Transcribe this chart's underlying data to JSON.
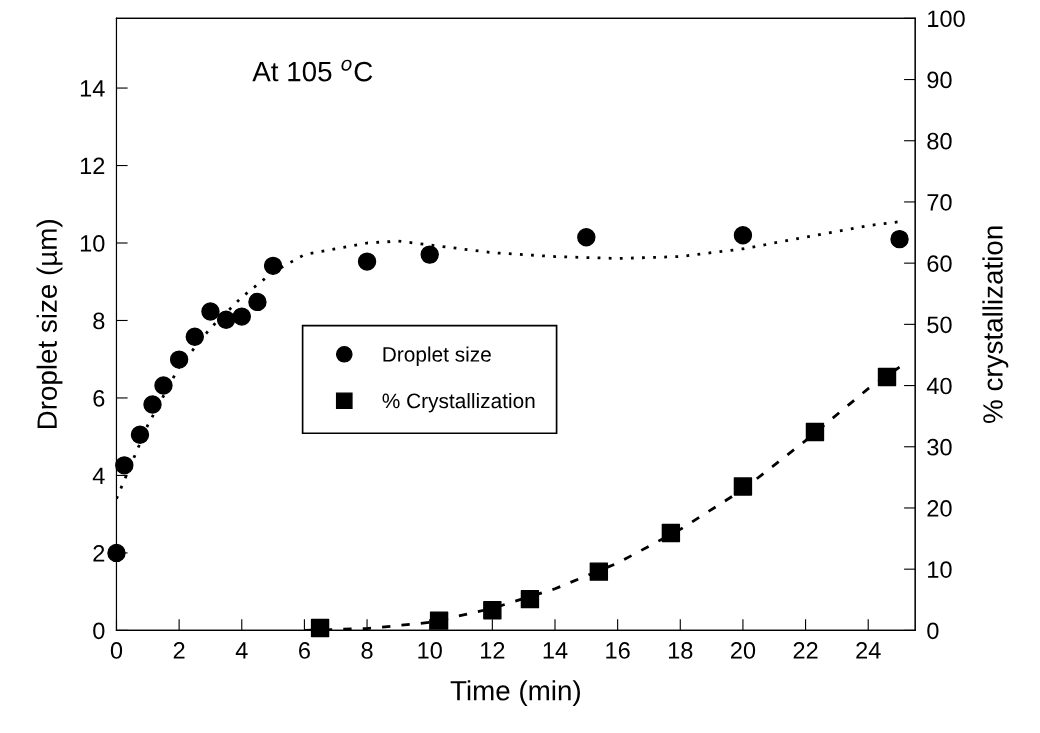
{
  "chart_data": {
    "type": "scatter",
    "xlabel": "Time (min)",
    "ylabel": "Droplet size (µm)",
    "y2label": "% crystallization",
    "annotations": [
      "At 105 $^{o}$C"
    ],
    "xlim": [
      0,
      25.5
    ],
    "xticks": [
      0,
      2,
      4,
      6,
      8,
      10,
      12,
      14,
      16,
      18,
      20,
      22,
      24
    ],
    "ylim": [
      0,
      15.8
    ],
    "yticks": [
      0,
      2,
      4,
      6,
      8,
      10,
      12,
      14
    ],
    "y2lim": [
      0,
      100
    ],
    "y2ticks": [
      0,
      10,
      20,
      30,
      40,
      50,
      60,
      70,
      80,
      90,
      100
    ],
    "grid": false,
    "legend": "center left",
    "series": [
      {
        "name": "Droplet size",
        "marker": "circle",
        "color": "#000000",
        "x": [
          0,
          0.25,
          0.75,
          1.15,
          1.5,
          2,
          2.5,
          3,
          3.5,
          4,
          4.5,
          5,
          8,
          10,
          15,
          20,
          25
        ],
        "values": [
          2.0,
          4.26,
          5.05,
          5.83,
          6.32,
          6.99,
          7.58,
          8.23,
          8.02,
          8.1,
          8.48,
          9.41,
          9.52,
          9.7,
          10.15,
          10.2,
          10.1
        ]
      },
      {
        "name": "% Crystallization",
        "marker": "square",
        "axis": "y2",
        "color": "#000000",
        "x": [
          6.5,
          10.3,
          12,
          13.2,
          15.4,
          17.7,
          20,
          22.3,
          24.6
        ],
        "values": [
          0.4,
          1.6,
          3.3,
          5.1,
          9.6,
          15.9,
          23.5,
          32.4,
          41.4
        ]
      },
      {
        "type": "line",
        "line_style": "dotted",
        "color": "#000000",
        "x": [
          0,
          1,
          2,
          3,
          4,
          5,
          6,
          8,
          9,
          10,
          12,
          14,
          16,
          18,
          20,
          22,
          24,
          25
        ],
        "values": [
          3.4,
          5.3,
          6.8,
          7.8,
          8.6,
          9.25,
          9.7,
          10.0,
          10.05,
          9.95,
          9.75,
          9.65,
          9.6,
          9.65,
          9.85,
          10.15,
          10.45,
          10.55
        ]
      },
      {
        "type": "line",
        "line_style": "dashed",
        "axis": "y2",
        "color": "#000000",
        "x": [
          6,
          8,
          10,
          12,
          14,
          16,
          18,
          20,
          22,
          24,
          25
        ],
        "values": [
          0,
          0.3,
          1.3,
          3.6,
          6.8,
          11,
          16.5,
          23,
          31,
          39.5,
          43
        ]
      }
    ]
  }
}
